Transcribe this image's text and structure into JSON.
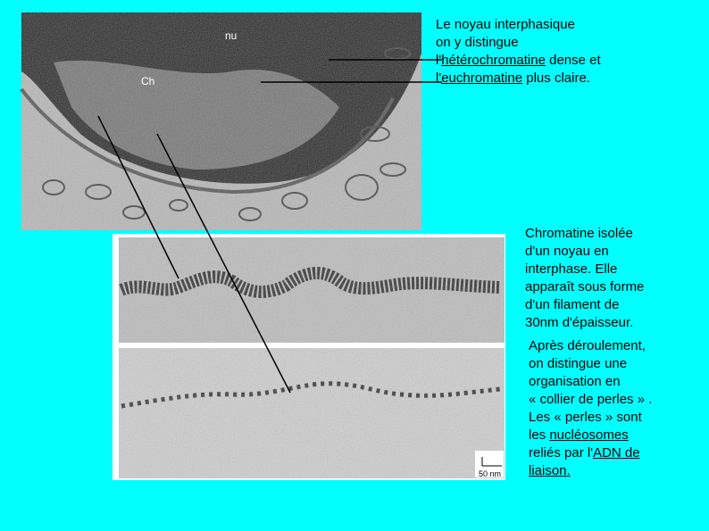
{
  "top_text": {
    "lines": [
      [
        "Le noyau interphasique"
      ],
      [
        "on y distingue"
      ],
      [
        "l'",
        {
          "text": "hétérochromatine",
          "underline": true
        },
        " dense et"
      ],
      [
        "l'",
        {
          "text": "euchromatine",
          "underline": true
        },
        " plus claire."
      ]
    ]
  },
  "image_labels": {
    "nucleolus": "nu",
    "chromatin": "Ch",
    "scale_bar": "50 nm"
  },
  "isolated_text": {
    "lines": [
      [
        "Chromatine isolée"
      ],
      [
        "d'un noyau en"
      ],
      [
        "interphase. Elle"
      ],
      [
        "apparaît sous forme"
      ],
      [
        "d'un filament de"
      ],
      [
        "30nm d'épaisseur."
      ]
    ]
  },
  "unrolled_text": {
    "lines": [
      [
        "Après déroulement,"
      ],
      [
        "on distingue une"
      ],
      [
        "organisation en"
      ],
      [
        "« collier de perles » ."
      ],
      [
        "Les « perles » sont"
      ],
      [
        "les ",
        {
          "text": "nucléosomes",
          "underline": true
        }
      ],
      [
        "reliés par l'",
        {
          "text": "ADN de",
          "underline": true
        }
      ],
      [
        {
          "text": "liaison.",
          "underline": true
        }
      ]
    ]
  }
}
